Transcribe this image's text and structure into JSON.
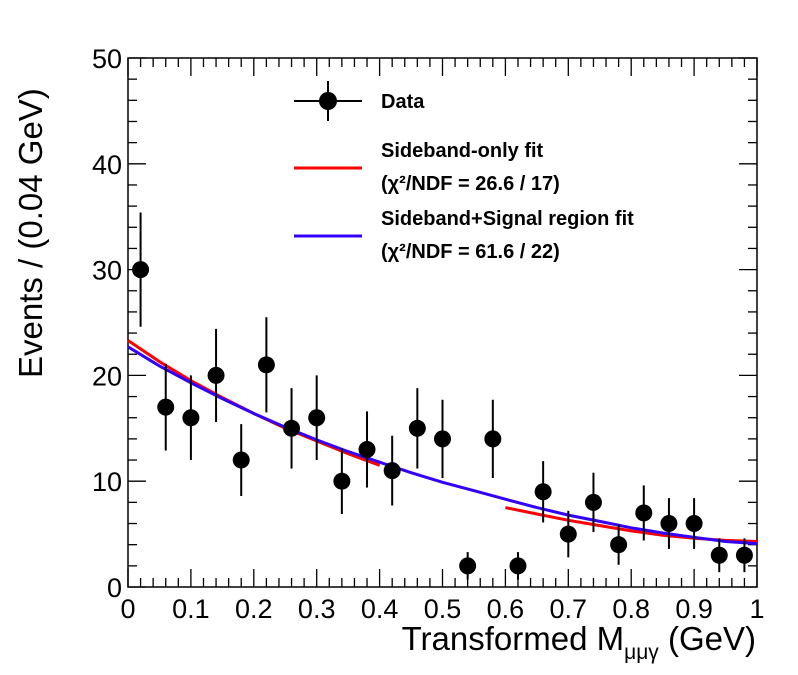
{
  "chart_data": {
    "type": "scatter",
    "xlabel_main": "Transformed M",
    "xlabel_sub": "μμγ",
    "xlabel_unit": " (GeV)",
    "ylabel": "Events / (0.04 GeV)",
    "xlim": [
      0,
      1
    ],
    "ylim": [
      0,
      50
    ],
    "x_major_ticks": [
      0,
      0.1,
      0.2,
      0.3,
      0.4,
      0.5,
      0.6,
      0.7,
      0.8,
      0.9,
      1
    ],
    "x_tick_labels": [
      "0",
      "0.1",
      "0.2",
      "0.3",
      "0.4",
      "0.5",
      "0.6",
      "0.7",
      "0.8",
      "0.9",
      "1"
    ],
    "y_major_ticks": [
      0,
      10,
      20,
      30,
      40,
      50
    ],
    "y_tick_labels": [
      "0",
      "10",
      "20",
      "30",
      "40",
      "50"
    ],
    "grid": false,
    "legend_position": "top-center",
    "series": [
      {
        "name": "Data",
        "kind": "points",
        "color": "#000000",
        "x": [
          0.02,
          0.06,
          0.1,
          0.14,
          0.18,
          0.22,
          0.26,
          0.3,
          0.34,
          0.38,
          0.42,
          0.46,
          0.5,
          0.54,
          0.58,
          0.62,
          0.66,
          0.7,
          0.74,
          0.78,
          0.82,
          0.86,
          0.9,
          0.94,
          0.98
        ],
        "y": [
          30,
          17,
          16,
          20,
          12,
          21,
          15,
          16,
          10,
          13,
          11,
          15,
          14,
          2,
          14,
          2,
          9,
          5,
          8,
          4,
          7,
          6,
          6,
          3,
          3
        ],
        "err_low": [
          5.4,
          4.1,
          4.0,
          4.4,
          3.4,
          4.5,
          3.8,
          4.0,
          3.1,
          3.6,
          3.3,
          3.8,
          3.7,
          1.3,
          3.7,
          1.3,
          2.9,
          2.2,
          2.8,
          1.9,
          2.6,
          2.4,
          2.4,
          1.6,
          1.6
        ],
        "err_high": [
          5.4,
          4.1,
          4.0,
          4.4,
          3.4,
          4.5,
          3.8,
          4.0,
          3.1,
          3.6,
          3.3,
          3.8,
          3.7,
          1.3,
          3.7,
          1.3,
          2.9,
          2.2,
          2.8,
          1.9,
          2.6,
          2.4,
          2.4,
          1.6,
          1.6
        ]
      },
      {
        "name": "Sideband-only fit",
        "name_line2": "(χ²/NDF = 26.6 / 17)",
        "kind": "line",
        "color": "#ff0000",
        "segments": [
          {
            "x": [
              0,
              0.05,
              0.1,
              0.15,
              0.2,
              0.25,
              0.3,
              0.35,
              0.4
            ],
            "y": [
              23.3,
              21.3,
              19.5,
              17.9,
              16.4,
              15.0,
              13.8,
              12.6,
              11.5
            ]
          },
          {
            "x": [
              0.6,
              0.65,
              0.7,
              0.75,
              0.8,
              0.85,
              0.9,
              0.95,
              1.0
            ],
            "y": [
              7.5,
              6.9,
              6.3,
              5.8,
              5.3,
              4.9,
              4.6,
              4.4,
              4.3
            ]
          }
        ]
      },
      {
        "name": "Sideband+Signal region fit",
        "name_line2": "(χ²/NDF = 61.6 / 22)",
        "kind": "line",
        "color": "#3300ff",
        "segments": [
          {
            "x": [
              0,
              0.05,
              0.1,
              0.15,
              0.2,
              0.25,
              0.3,
              0.35,
              0.4,
              0.45,
              0.5,
              0.55,
              0.6,
              0.65,
              0.7,
              0.75,
              0.8,
              0.85,
              0.9,
              0.95,
              1.0
            ],
            "y": [
              22.7,
              20.9,
              19.3,
              17.8,
              16.4,
              15.1,
              13.9,
              12.8,
              11.8,
              10.8,
              9.9,
              9.1,
              8.3,
              7.5,
              6.8,
              6.2,
              5.6,
              5.1,
              4.7,
              4.3,
              4.1
            ]
          }
        ]
      }
    ]
  }
}
